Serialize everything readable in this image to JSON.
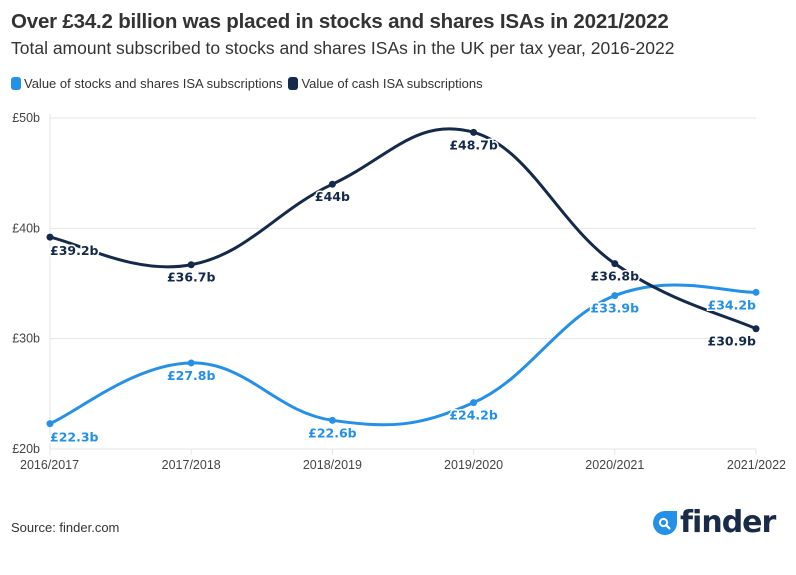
{
  "header": {
    "title": "Over £34.2 billion was placed in stocks and shares ISAs in 2021/2022",
    "subtitle": "Total amount subscribed to stocks and shares ISAs in the UK per tax year, 2016-2022"
  },
  "legend": [
    {
      "label": "Value of stocks and shares ISA subscriptions",
      "color": "#2490e8"
    },
    {
      "label": "Value of cash ISA subscriptions",
      "color": "#15294a"
    }
  ],
  "footer": {
    "source": "Source: finder.com",
    "logo_text": "finder",
    "logo_icon": "search-magnifier-icon",
    "logo_color": "#2490e8"
  },
  "chart_data": {
    "type": "line",
    "title": "Over £34.2 billion was placed in stocks and shares ISAs in 2021/2022",
    "subtitle": "Total amount subscribed to stocks and shares ISAs in the UK per tax year, 2016-2022",
    "xlabel": "",
    "ylabel": "",
    "categories": [
      "2016/2017",
      "2017/2018",
      "2018/2019",
      "2019/2020",
      "2020/2021",
      "2021/2022"
    ],
    "ylim": [
      20,
      50
    ],
    "yticks": [
      20,
      30,
      40,
      50
    ],
    "ytick_labels": [
      "£20b",
      "£30b",
      "£40b",
      "£50b"
    ],
    "grid": "horizontal",
    "legend_position": "top-left",
    "smooth": true,
    "series": [
      {
        "name": "Value of stocks and shares ISA subscriptions",
        "color": "#2490e8",
        "values": [
          22.3,
          27.8,
          22.6,
          24.2,
          33.9,
          34.2
        ],
        "labels": [
          "£22.3b",
          "£27.8b",
          "£22.6b",
          "£24.2b",
          "£33.9b",
          "£34.2b"
        ]
      },
      {
        "name": "Value of cash ISA subscriptions",
        "color": "#15294a",
        "values": [
          39.2,
          36.7,
          44,
          48.7,
          36.8,
          30.9
        ],
        "labels": [
          "£39.2b",
          "£36.7b",
          "£44b",
          "£48.7b",
          "£36.8b",
          "£30.9b"
        ]
      }
    ]
  }
}
